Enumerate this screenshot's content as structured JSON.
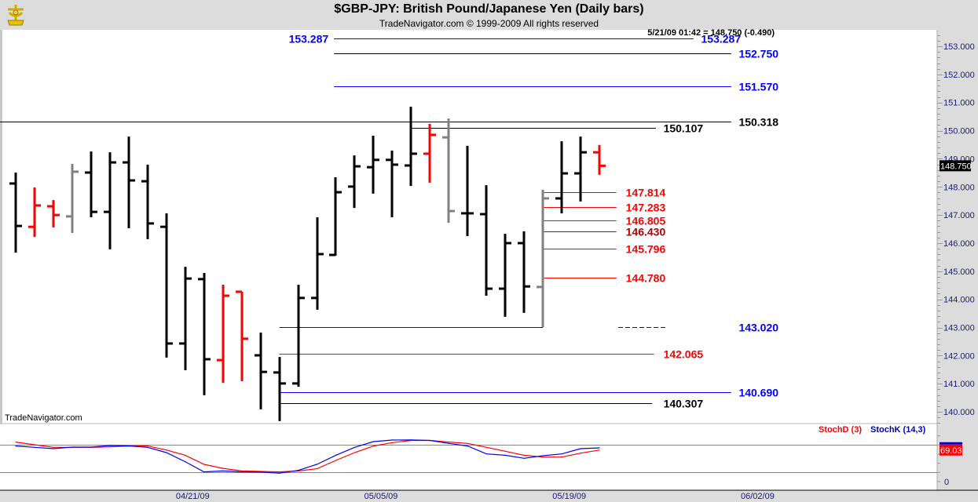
{
  "header": {
    "title": "$GBP-JPY:  British Pound/Japanese Yen  (Daily bars)",
    "subtitle": "TradeNavigator.com © 1999-2009 All rights reserved",
    "logo_icon": "sextant-icon"
  },
  "quote_readout": "5/21/09 01:42 = 148.750 (-0.490)",
  "watermark": "TradeNavigator.com",
  "colors": {
    "up": "#000000",
    "down": "#ff0000",
    "neutral": "#808080",
    "blue": "#0000ff",
    "red": "#ff0000",
    "darkred": "#b00000"
  },
  "chart_data": [
    {
      "type": "ohlc",
      "title": "$GBP-JPY: British Pound/Japanese Yen (Daily bars)",
      "ylim": [
        139.6,
        153.4
      ],
      "yticks": [
        "140.000",
        "141.000",
        "142.000",
        "143.000",
        "144.000",
        "145.000",
        "146.000",
        "147.000",
        "148.000",
        "149.000",
        "150.000",
        "151.000",
        "152.000",
        "153.000"
      ],
      "last_price_label": "148.750",
      "last_price": 148.75,
      "xticks": [
        {
          "bar": 9.4,
          "label": "04/21/09"
        },
        {
          "bar": 19.4,
          "label": "05/05/09"
        },
        {
          "bar": 29.4,
          "label": "05/19/09"
        },
        {
          "bar": 39.4,
          "label": "06/02/09"
        }
      ],
      "bars": [
        {
          "o": 148.12,
          "h": 148.51,
          "l": 145.66,
          "c": 146.61,
          "color": "up"
        },
        {
          "o": 146.58,
          "h": 147.98,
          "l": 146.22,
          "c": 147.34,
          "color": "down"
        },
        {
          "o": 147.31,
          "h": 147.53,
          "l": 146.56,
          "c": 147.0,
          "color": "down"
        },
        {
          "o": 146.95,
          "h": 148.82,
          "l": 146.36,
          "c": 148.54,
          "color": "neutral"
        },
        {
          "o": 148.51,
          "h": 149.26,
          "l": 146.92,
          "c": 147.11,
          "color": "up"
        },
        {
          "o": 147.11,
          "h": 149.23,
          "l": 145.78,
          "c": 148.87,
          "color": "up"
        },
        {
          "o": 148.87,
          "h": 149.79,
          "l": 146.53,
          "c": 148.23,
          "color": "up"
        },
        {
          "o": 148.2,
          "h": 148.79,
          "l": 146.14,
          "c": 146.7,
          "color": "up"
        },
        {
          "o": 146.58,
          "h": 147.06,
          "l": 141.93,
          "c": 142.43,
          "color": "up"
        },
        {
          "o": 142.43,
          "h": 145.16,
          "l": 141.48,
          "c": 144.74,
          "color": "up"
        },
        {
          "o": 144.72,
          "h": 144.94,
          "l": 140.59,
          "c": 141.87,
          "color": "up"
        },
        {
          "o": 141.84,
          "h": 144.52,
          "l": 141.03,
          "c": 144.13,
          "color": "down"
        },
        {
          "o": 144.27,
          "h": 144.27,
          "l": 141.09,
          "c": 142.6,
          "color": "down"
        },
        {
          "o": 142.01,
          "h": 142.82,
          "l": 140.09,
          "c": 141.42,
          "color": "up"
        },
        {
          "o": 141.4,
          "h": 141.95,
          "l": 139.67,
          "c": 141.01,
          "color": "up"
        },
        {
          "o": 141.01,
          "h": 144.52,
          "l": 140.89,
          "c": 144.05,
          "color": "up"
        },
        {
          "o": 144.05,
          "h": 146.92,
          "l": 143.63,
          "c": 145.61,
          "color": "up"
        },
        {
          "o": 145.58,
          "h": 148.34,
          "l": 145.55,
          "c": 147.81,
          "color": "up"
        },
        {
          "o": 148.01,
          "h": 149.12,
          "l": 147.25,
          "c": 148.73,
          "color": "up"
        },
        {
          "o": 148.7,
          "h": 149.82,
          "l": 147.76,
          "c": 148.96,
          "color": "up"
        },
        {
          "o": 148.96,
          "h": 149.29,
          "l": 146.92,
          "c": 148.79,
          "color": "up"
        },
        {
          "o": 148.76,
          "h": 150.85,
          "l": 148.03,
          "c": 149.18,
          "color": "up"
        },
        {
          "o": 149.18,
          "h": 150.24,
          "l": 148.15,
          "c": 149.85,
          "color": "down"
        },
        {
          "o": 149.76,
          "h": 150.43,
          "l": 146.72,
          "c": 147.14,
          "color": "neutral"
        },
        {
          "o": 147.06,
          "h": 149.46,
          "l": 146.25,
          "c": 147.06,
          "color": "up"
        },
        {
          "o": 147.03,
          "h": 148.06,
          "l": 144.13,
          "c": 144.38,
          "color": "up"
        },
        {
          "o": 144.38,
          "h": 146.33,
          "l": 143.38,
          "c": 146.0,
          "color": "up"
        },
        {
          "o": 146.0,
          "h": 146.42,
          "l": 143.52,
          "c": 144.46,
          "color": "up"
        },
        {
          "o": 144.44,
          "h": 147.9,
          "l": 143.01,
          "c": 147.59,
          "color": "neutral"
        },
        {
          "o": 147.59,
          "h": 149.62,
          "l": 147.06,
          "c": 148.48,
          "color": "up"
        },
        {
          "o": 148.48,
          "h": 149.79,
          "l": 147.48,
          "c": 149.23,
          "color": "up"
        },
        {
          "o": 149.23,
          "h": 149.49,
          "l": 148.43,
          "c": 148.75,
          "color": "down"
        }
      ],
      "levels": [
        {
          "label": "153.287",
          "price": 153.287,
          "line": "blue",
          "text": "blue",
          "from": 16.9,
          "to": 36.0,
          "label_bar": 36.4,
          "left_label_bar": 14.5
        },
        {
          "label": "152.750",
          "price": 152.75,
          "line": "up",
          "text": "blue",
          "from": 16.9,
          "to": 38.0,
          "label_bar": 38.4
        },
        {
          "label": "151.570",
          "price": 151.57,
          "line": "blue",
          "text": "blue",
          "from": 16.9,
          "to": 38.0,
          "label_bar": 38.4
        },
        {
          "label": "150.318",
          "price": 150.318,
          "line": "up",
          "text": "up",
          "from": -0.9,
          "to": 38.0,
          "label_bar": 38.4
        },
        {
          "label": "150.107",
          "price": 150.107,
          "line": "up",
          "text": "up",
          "from": 21.0,
          "to": 34.0,
          "label_bar": 34.4
        },
        {
          "label": "147.814",
          "price": 147.814,
          "line": "red",
          "text": "red",
          "from": 28.0,
          "to": 31.9,
          "label_bar": 32.4
        },
        {
          "label": "147.283",
          "price": 147.283,
          "line": "red",
          "text": "red",
          "from": 28.0,
          "to": 31.9,
          "label_bar": 32.4
        },
        {
          "label": "146.805",
          "price": 146.805,
          "line": "red",
          "text": "red",
          "from": 28.0,
          "to": 31.9,
          "label_bar": 32.4
        },
        {
          "label": "146.430",
          "price": 146.43,
          "line": "darkred",
          "text": "darkred",
          "from": 28.0,
          "to": 31.9,
          "label_bar": 32.4
        },
        {
          "label": "145.796",
          "price": 145.796,
          "line": "red",
          "text": "red",
          "from": 28.0,
          "to": 31.9,
          "label_bar": 32.4
        },
        {
          "label": "144.780",
          "price": 144.78,
          "line": "red",
          "text": "red",
          "from": 28.0,
          "to": 31.9,
          "label_bar": 32.4
        },
        {
          "label": "143.020",
          "price": 143.02,
          "line": "blue",
          "text": "blue",
          "from": 14.0,
          "to": 28.0,
          "label_bar": 38.4,
          "dotted_from": 32.0,
          "dotted_to": 34.5
        },
        {
          "label": "142.065",
          "price": 142.065,
          "line": "red",
          "text": "red",
          "from": 14.0,
          "to": 33.9,
          "label_bar": 34.4
        },
        {
          "label": "140.690",
          "price": 140.69,
          "line": "blue",
          "text": "blue",
          "from": 14.0,
          "to": 38.0,
          "label_bar": 38.4
        },
        {
          "label": "140.307",
          "price": 140.307,
          "line": "up",
          "text": "up",
          "from": 14.0,
          "to": 33.8,
          "label_bar": 34.4
        }
      ]
    },
    {
      "type": "line",
      "title": "Stochastic",
      "ylim": [
        0,
        100
      ],
      "reference_lines": [
        20,
        80
      ],
      "yticks": [
        "0"
      ],
      "last_value_label": "69.03",
      "series": [
        {
          "name": "StochD (3)",
          "color": "#ff0000",
          "values": [
            86.4,
            80.6,
            74.9,
            74.9,
            74.9,
            76,
            77.8,
            77.8,
            69.2,
            57.7,
            37.7,
            29,
            23.4,
            22.3,
            21.2,
            23.4,
            28.1,
            46.3,
            63.4,
            77.8,
            85.2,
            90,
            90,
            86.4,
            83.5,
            74.9,
            66.3,
            57.7,
            53.7,
            53.7,
            62.3,
            69.03
          ]
        },
        {
          "name": "StochK (14,3)",
          "color": "#0000ff",
          "values": [
            77.8,
            74.9,
            72,
            75.4,
            75.4,
            78.9,
            78,
            74.9,
            63.4,
            43.5,
            21.2,
            23.4,
            21.2,
            21,
            18.3,
            24.6,
            37.7,
            57.7,
            74.9,
            87.4,
            90.9,
            91,
            90,
            83.5,
            77.8,
            60.6,
            57.7,
            50.9,
            56.6,
            60.6,
            72,
            73.7
          ]
        }
      ]
    }
  ]
}
